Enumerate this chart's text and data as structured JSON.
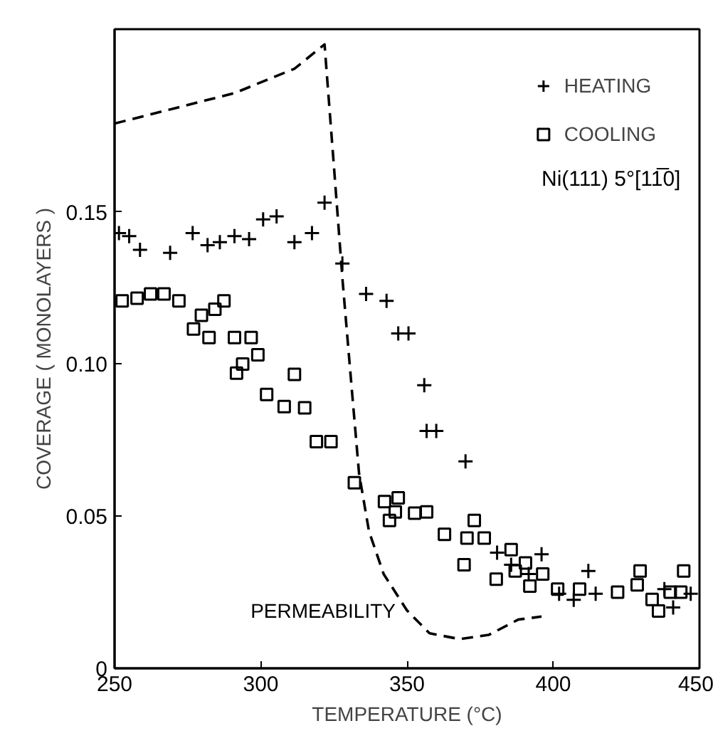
{
  "chart_data": {
    "type": "scatter",
    "xlabel": "TEMPERATURE (°C)",
    "ylabel": "COVERAGE ( MONOLAYERS )",
    "xlim": [
      250,
      450
    ],
    "ylim": [
      0,
      0.21
    ],
    "xticks": [
      250,
      300,
      350,
      400,
      450
    ],
    "yticks": [
      0,
      0.05,
      {
        "value": 0.1,
        "label": "0.10"
      },
      0.15
    ],
    "grid": false,
    "legend": "top right",
    "annotations": [
      "Ni(111)  5°[11̅0]"
    ],
    "series": [
      {
        "name": "HEATING",
        "color": "#000000",
        "marker": "cross",
        "x": [
          251.5,
          255,
          258.7,
          269,
          276.7,
          281.8,
          286,
          291,
          296,
          300.8,
          305.4,
          311.5,
          317.5,
          321.8,
          327.9,
          336,
          343,
          347,
          350.5,
          355.9,
          356.7,
          360,
          370,
          380.8,
          385.6,
          391.6,
          396,
          402,
          407,
          412,
          414.5,
          438,
          441,
          447
        ],
        "values": [
          0.143,
          0.142,
          0.1375,
          0.1365,
          0.143,
          0.139,
          0.14,
          0.142,
          0.141,
          0.1475,
          0.1485,
          0.14,
          0.143,
          0.153,
          0.133,
          0.123,
          0.1207,
          0.11,
          0.11,
          0.093,
          0.078,
          0.078,
          0.068,
          0.038,
          0.034,
          0.031,
          0.0375,
          0.0245,
          0.0225,
          0.032,
          0.0245,
          0.026,
          0.02,
          0.0245
        ]
      },
      {
        "name": "COOLING",
        "color": "#000000",
        "marker": "square",
        "x": [
          252.6,
          257.7,
          262.3,
          266.9,
          272,
          277,
          279.7,
          282.3,
          284.3,
          287.4,
          291,
          296.7,
          299,
          291.7,
          293.8,
          311.5,
          302,
          308,
          315,
          319,
          324,
          332,
          342.3,
          346,
          347,
          344,
          352.6,
          356.7,
          362.8,
          369.5,
          370.5,
          373,
          376.4,
          380.5,
          385.6,
          387,
          390.5,
          392,
          396.4,
          401.5,
          409,
          422,
          428.7,
          429.7,
          433.8,
          436,
          440,
          444.6,
          443.6
        ],
        "values": [
          0.1207,
          0.1216,
          0.123,
          0.123,
          0.1207,
          0.1115,
          0.116,
          0.1087,
          0.118,
          0.1207,
          0.1087,
          0.1087,
          0.103,
          0.097,
          0.1,
          0.0966,
          0.09,
          0.086,
          0.0856,
          0.0745,
          0.0745,
          0.061,
          0.0548,
          0.0514,
          0.056,
          0.0486,
          0.051,
          0.0514,
          0.044,
          0.034,
          0.0428,
          0.0486,
          0.0428,
          0.0293,
          0.039,
          0.032,
          0.0346,
          0.027,
          0.031,
          0.026,
          0.026,
          0.025,
          0.0274,
          0.032,
          0.0226,
          0.0188,
          0.025,
          0.032,
          0.025
        ]
      },
      {
        "name": "PERMEABILITY",
        "type": "line",
        "line_style": "dashed",
        "color": "#000000",
        "x": [
          250,
          270.5,
          291,
          311.5,
          321.8,
          325,
          328,
          331,
          333.6,
          337,
          342,
          350,
          357.7,
          368,
          378,
          388,
          396
        ],
        "values": [
          0.179,
          0.184,
          0.189,
          0.197,
          0.205,
          0.165,
          0.127,
          0.093,
          0.064,
          0.045,
          0.031,
          0.019,
          0.0115,
          0.0096,
          0.011,
          0.016,
          0.017
        ]
      }
    ]
  }
}
